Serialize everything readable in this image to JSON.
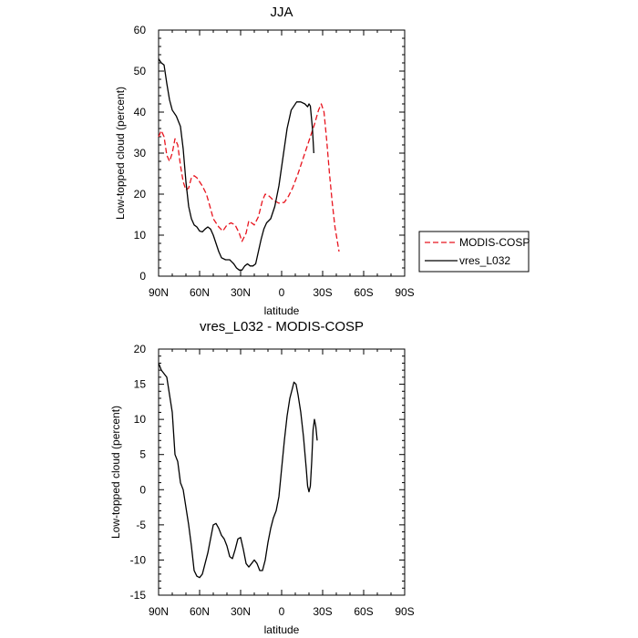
{
  "chart_data": [
    {
      "type": "line",
      "title": "JJA",
      "xlabel": "latitude",
      "ylabel": "Low-topped cloud (percent)",
      "xlim": [
        90,
        -90
      ],
      "ylim": [
        0,
        60
      ],
      "x_ticks": [
        90,
        60,
        30,
        0,
        -30,
        -60,
        -90
      ],
      "x_tick_labels": [
        "90N",
        "60N",
        "30N",
        "0",
        "30S",
        "60S",
        "90S"
      ],
      "y_ticks": [
        0,
        10,
        20,
        30,
        40,
        50,
        60
      ],
      "y_tick_labels": [
        "0",
        "10",
        "20",
        "30",
        "40",
        "50",
        "60"
      ],
      "legend_position": "right-lower-outside",
      "series": [
        {
          "name": "MODIS-COSP",
          "color": "#e8141e",
          "dashed": true,
          "points": [
            [
              90,
              34
            ],
            [
              88,
              35.5
            ],
            [
              86,
              34
            ],
            [
              84,
              29.5
            ],
            [
              82,
              28
            ],
            [
              80,
              30
            ],
            [
              78,
              33.5
            ],
            [
              76,
              32
            ],
            [
              74,
              27
            ],
            [
              72,
              23
            ],
            [
              70,
              21
            ],
            [
              68,
              21.5
            ],
            [
              66,
              24
            ],
            [
              64,
              24.5
            ],
            [
              62,
              24
            ],
            [
              60,
              23
            ],
            [
              58,
              22
            ],
            [
              55,
              20
            ],
            [
              52,
              16.5
            ],
            [
              50,
              14
            ],
            [
              46,
              12
            ],
            [
              43,
              11
            ],
            [
              40,
              12.5
            ],
            [
              37,
              13
            ],
            [
              34,
              12.5
            ],
            [
              31,
              10.5
            ],
            [
              29,
              8.5
            ],
            [
              26,
              10.5
            ],
            [
              24,
              13.5
            ],
            [
              22,
              13
            ],
            [
              20,
              12.5
            ],
            [
              17,
              14.5
            ],
            [
              14,
              18.5
            ],
            [
              12,
              20
            ],
            [
              9,
              19.5
            ],
            [
              6,
              18.5
            ],
            [
              2,
              17.8
            ],
            [
              -2,
              18
            ],
            [
              -5,
              19.5
            ],
            [
              -8,
              21.5
            ],
            [
              -12,
              25
            ],
            [
              -16,
              29
            ],
            [
              -20,
              33
            ],
            [
              -24,
              37
            ],
            [
              -27,
              40.5
            ],
            [
              -29,
              42
            ],
            [
              -31,
              40
            ],
            [
              -33,
              33
            ],
            [
              -35,
              25
            ],
            [
              -37,
              18
            ],
            [
              -39,
              12
            ],
            [
              -42,
              6
            ]
          ]
        },
        {
          "name": "vres_L032",
          "color": "#000000",
          "dashed": false,
          "points": [
            [
              90,
              53
            ],
            [
              88,
              52
            ],
            [
              86,
              51.5
            ],
            [
              84,
              47
            ],
            [
              82,
              43
            ],
            [
              80,
              40.5
            ],
            [
              77,
              39
            ],
            [
              74,
              36.5
            ],
            [
              72,
              31
            ],
            [
              70,
              23
            ],
            [
              68,
              17
            ],
            [
              66,
              14
            ],
            [
              64,
              12.5
            ],
            [
              62,
              12
            ],
            [
              60,
              11
            ],
            [
              58,
              10.8
            ],
            [
              56,
              11.5
            ],
            [
              54,
              12
            ],
            [
              52,
              11.5
            ],
            [
              50,
              10
            ],
            [
              48,
              8
            ],
            [
              46,
              6
            ],
            [
              44,
              4.5
            ],
            [
              41,
              4
            ],
            [
              38,
              4
            ],
            [
              35,
              3
            ],
            [
              33,
              2
            ],
            [
              31,
              1.5
            ],
            [
              29,
              1.5
            ],
            [
              27,
              2.5
            ],
            [
              25,
              3
            ],
            [
              23,
              2.5
            ],
            [
              21,
              2.5
            ],
            [
              19,
              3
            ],
            [
              17,
              6
            ],
            [
              15,
              9
            ],
            [
              13,
              11.5
            ],
            [
              11,
              13
            ],
            [
              8,
              14
            ],
            [
              5,
              17
            ],
            [
              2,
              22
            ],
            [
              -1,
              29
            ],
            [
              -4,
              36
            ],
            [
              -7,
              40.5
            ],
            [
              -9,
              41.5
            ],
            [
              -11,
              42.5
            ],
            [
              -14,
              42.5
            ],
            [
              -17,
              42
            ],
            [
              -19,
              41.3
            ],
            [
              -20,
              42
            ],
            [
              -21,
              41.5
            ],
            [
              -22.5,
              36
            ],
            [
              -23.5,
              30
            ]
          ]
        }
      ]
    },
    {
      "type": "line",
      "title": "vres_L032 - MODIS-COSP",
      "xlabel": "latitude",
      "ylabel": "Low-topped cloud (percent)",
      "xlim": [
        90,
        -90
      ],
      "ylim": [
        -15,
        20
      ],
      "x_ticks": [
        90,
        60,
        30,
        0,
        -30,
        -60,
        -90
      ],
      "x_tick_labels": [
        "90N",
        "60N",
        "30N",
        "0",
        "30S",
        "60S",
        "90S"
      ],
      "y_ticks": [
        -15,
        -10,
        -5,
        0,
        5,
        10,
        15,
        20
      ],
      "y_tick_labels": [
        "-15",
        "-10",
        "-5",
        "0",
        "5",
        "10",
        "15",
        "20"
      ],
      "series": [
        {
          "color": "#000000",
          "dashed": false,
          "points": [
            [
              90,
              18
            ],
            [
              88,
              17
            ],
            [
              86,
              16.5
            ],
            [
              84,
              16
            ],
            [
              82,
              13.5
            ],
            [
              80,
              11
            ],
            [
              79,
              8
            ],
            [
              78,
              5
            ],
            [
              76,
              4
            ],
            [
              74,
              1
            ],
            [
              72,
              0
            ],
            [
              70,
              -2.5
            ],
            [
              68,
              -5
            ],
            [
              66,
              -8
            ],
            [
              64,
              -11.5
            ],
            [
              62,
              -12.3
            ],
            [
              60,
              -12.5
            ],
            [
              58,
              -12
            ],
            [
              56,
              -10.5
            ],
            [
              54,
              -9
            ],
            [
              52,
              -7
            ],
            [
              50,
              -5
            ],
            [
              48,
              -4.8
            ],
            [
              46,
              -5.5
            ],
            [
              44,
              -6.5
            ],
            [
              42,
              -7
            ],
            [
              40,
              -8
            ],
            [
              38,
              -9.5
            ],
            [
              36,
              -9.8
            ],
            [
              34,
              -8.5
            ],
            [
              32,
              -7
            ],
            [
              30,
              -6.8
            ],
            [
              28,
              -8.5
            ],
            [
              26,
              -10.5
            ],
            [
              24,
              -11
            ],
            [
              22,
              -10.5
            ],
            [
              20,
              -10
            ],
            [
              18,
              -10.5
            ],
            [
              16,
              -11.5
            ],
            [
              14,
              -11.5
            ],
            [
              12,
              -10
            ],
            [
              10,
              -7.5
            ],
            [
              8,
              -5.5
            ],
            [
              6,
              -4
            ],
            [
              4,
              -3
            ],
            [
              2,
              -1
            ],
            [
              0,
              3
            ],
            [
              -2,
              7
            ],
            [
              -4,
              10.5
            ],
            [
              -6,
              13
            ],
            [
              -8,
              14.5
            ],
            [
              -9,
              15.3
            ],
            [
              -10.5,
              15
            ],
            [
              -12,
              13.5
            ],
            [
              -14,
              11
            ],
            [
              -16,
              7.5
            ],
            [
              -18,
              3
            ],
            [
              -19,
              0.5
            ],
            [
              -20,
              -0.3
            ],
            [
              -21,
              0.5
            ],
            [
              -22,
              4
            ],
            [
              -23,
              8.5
            ],
            [
              -24,
              10
            ],
            [
              -25,
              9
            ],
            [
              -26,
              7
            ]
          ]
        }
      ]
    }
  ]
}
